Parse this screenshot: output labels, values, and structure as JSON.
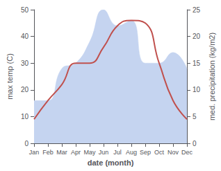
{
  "chart_data": {
    "type": "line",
    "xlabel": "date (month)",
    "ylabel": "max temp (C)",
    "y2label": "med. precipitation (kg/m2)",
    "categories": [
      "Jan",
      "Feb",
      "Mar",
      "Apr",
      "May",
      "Jun",
      "Jul",
      "Aug",
      "Sep",
      "Oct",
      "Nov",
      "Dec"
    ],
    "series": [
      {
        "type": "area",
        "color": "#c5d4f0",
        "axis": "y2",
        "values": [
          8,
          8,
          14,
          15,
          19,
          25,
          22,
          23,
          15,
          15,
          17,
          14
        ]
      },
      {
        "type": "line",
        "color": "#c0504d",
        "values": [
          9,
          16,
          22,
          30,
          30,
          36,
          44,
          46,
          45,
          30,
          16,
          9
        ]
      }
    ],
    "ylim": [
      0,
      50
    ],
    "yticks": [
      0,
      10,
      20,
      30,
      40,
      50
    ],
    "y2lim": [
      0,
      25
    ],
    "y2ticks": [
      0,
      5,
      10,
      15,
      20,
      25
    ],
    "grid": false
  }
}
